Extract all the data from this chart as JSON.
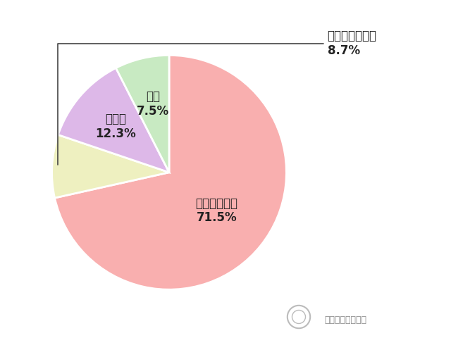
{
  "labels_plain": [
    "ローンで購入",
    "現金で一括購入",
    "その他",
    "相続"
  ],
  "percentages": [
    "71.5%",
    "8.7%",
    "12.3%",
    "7.5%"
  ],
  "values": [
    71.5,
    8.7,
    12.3,
    7.5
  ],
  "colors": [
    "#F9AFAF",
    "#EEF0C0",
    "#DDB8E8",
    "#C8EAC2"
  ],
  "background_color": "#FFFFFF",
  "startangle": 90,
  "text_color": "#222222",
  "watermark_text": "マネーゴーランド",
  "font_size_inside": 12,
  "font_size_annotation": 12
}
